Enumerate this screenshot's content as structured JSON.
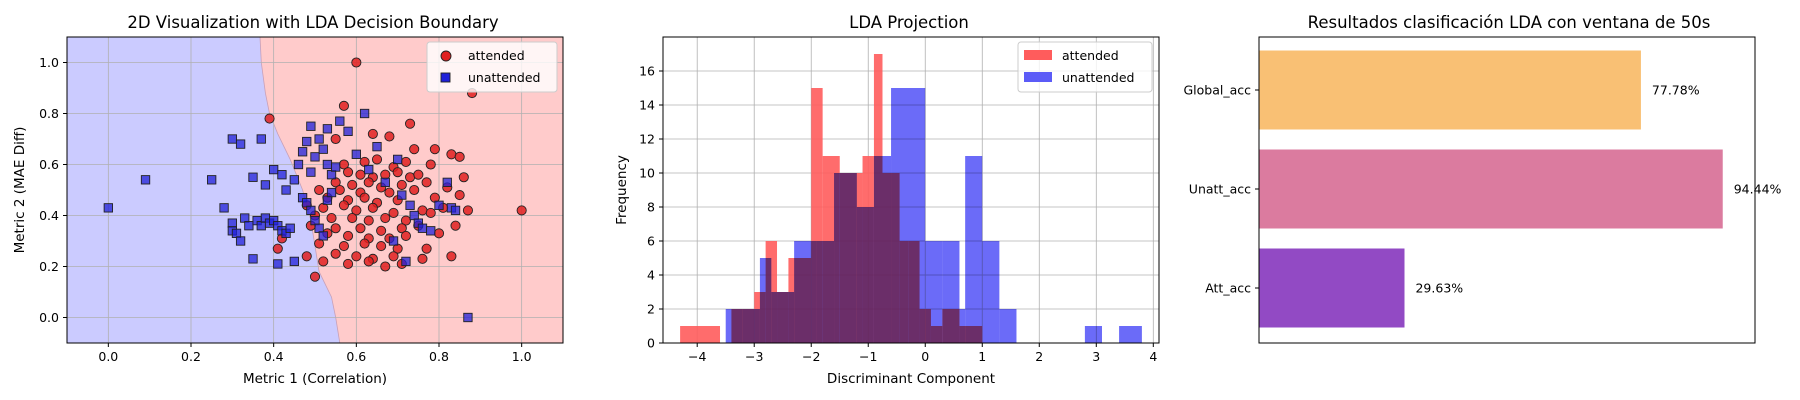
{
  "chart_data": [
    {
      "type": "scatter",
      "title": "2D Visualization with LDA Decision Boundary",
      "xlabel": "Metric 1 (Correlation)",
      "ylabel": "Metric 2 (MAE Diff)",
      "xlim": [
        -0.1,
        1.1
      ],
      "ylim": [
        -0.1,
        1.1
      ],
      "xticks": [
        "0.0",
        "0.2",
        "0.4",
        "0.6",
        "0.8",
        "1.0"
      ],
      "yticks": [
        "0.0",
        "0.2",
        "0.4",
        "0.6",
        "0.8",
        "1.0"
      ],
      "grid": true,
      "legend": "top-right",
      "regions": {
        "left_color": "#cbcbff",
        "right_color": "#ffcbcb"
      },
      "boundary": [
        [
          0.367,
          1.1
        ],
        [
          0.37,
          1.0
        ],
        [
          0.38,
          0.88
        ],
        [
          0.39,
          0.8
        ],
        [
          0.41,
          0.72
        ],
        [
          0.44,
          0.62
        ],
        [
          0.47,
          0.5
        ],
        [
          0.49,
          0.38
        ],
        [
          0.5,
          0.28
        ],
        [
          0.51,
          0.18
        ],
        [
          0.54,
          0.08
        ],
        [
          0.55,
          0.0
        ],
        [
          0.56,
          -0.1
        ]
      ],
      "series": [
        {
          "name": "attended",
          "marker": "circle",
          "color": "#e02020",
          "points": [
            [
              0.6,
              1.0
            ],
            [
              0.88,
              0.88
            ],
            [
              0.57,
              0.83
            ],
            [
              0.73,
              0.76
            ],
            [
              0.39,
              0.78
            ],
            [
              0.64,
              0.72
            ],
            [
              0.68,
              0.71
            ],
            [
              0.55,
              0.7
            ],
            [
              0.74,
              0.66
            ],
            [
              0.79,
              0.66
            ],
            [
              0.83,
              0.64
            ],
            [
              0.85,
              0.63
            ],
            [
              0.62,
              0.61
            ],
            [
              0.65,
              0.62
            ],
            [
              0.72,
              0.61
            ],
            [
              0.78,
              0.6
            ],
            [
              0.57,
              0.6
            ],
            [
              0.69,
              0.59
            ],
            [
              0.58,
              0.57
            ],
            [
              0.61,
              0.56
            ],
            [
              0.64,
              0.55
            ],
            [
              0.67,
              0.56
            ],
            [
              0.7,
              0.57
            ],
            [
              0.73,
              0.55
            ],
            [
              0.75,
              0.56
            ],
            [
              0.86,
              0.55
            ],
            [
              0.55,
              0.53
            ],
            [
              0.59,
              0.52
            ],
            [
              0.63,
              0.53
            ],
            [
              0.66,
              0.51
            ],
            [
              0.71,
              0.52
            ],
            [
              0.77,
              0.53
            ],
            [
              0.51,
              0.5
            ],
            [
              0.56,
              0.5
            ],
            [
              0.61,
              0.49
            ],
            [
              0.68,
              0.49
            ],
            [
              0.74,
              0.5
            ],
            [
              0.82,
              0.51
            ],
            [
              0.53,
              0.47
            ],
            [
              0.58,
              0.46
            ],
            [
              0.62,
              0.47
            ],
            [
              0.65,
              0.45
            ],
            [
              0.7,
              0.46
            ],
            [
              0.79,
              0.47
            ],
            [
              0.85,
              0.48
            ],
            [
              0.48,
              0.44
            ],
            [
              0.52,
              0.43
            ],
            [
              0.57,
              0.44
            ],
            [
              0.6,
              0.42
            ],
            [
              0.64,
              0.43
            ],
            [
              0.69,
              0.41
            ],
            [
              0.76,
              0.42
            ],
            [
              0.81,
              0.43
            ],
            [
              0.5,
              0.4
            ],
            [
              0.54,
              0.39
            ],
            [
              0.59,
              0.39
            ],
            [
              0.63,
              0.38
            ],
            [
              0.67,
              0.39
            ],
            [
              0.72,
              0.38
            ],
            [
              0.78,
              0.41
            ],
            [
              0.87,
              0.42
            ],
            [
              1.0,
              0.42
            ],
            [
              0.49,
              0.36
            ],
            [
              0.55,
              0.35
            ],
            [
              0.61,
              0.35
            ],
            [
              0.66,
              0.34
            ],
            [
              0.71,
              0.35
            ],
            [
              0.75,
              0.36
            ],
            [
              0.84,
              0.36
            ],
            [
              0.53,
              0.33
            ],
            [
              0.58,
              0.32
            ],
            [
              0.63,
              0.31
            ],
            [
              0.68,
              0.31
            ],
            [
              0.72,
              0.32
            ],
            [
              0.8,
              0.33
            ],
            [
              0.42,
              0.31
            ],
            [
              0.51,
              0.29
            ],
            [
              0.57,
              0.28
            ],
            [
              0.62,
              0.29
            ],
            [
              0.66,
              0.28
            ],
            [
              0.7,
              0.27
            ],
            [
              0.77,
              0.27
            ],
            [
              0.41,
              0.27
            ],
            [
              0.55,
              0.25
            ],
            [
              0.6,
              0.24
            ],
            [
              0.64,
              0.23
            ],
            [
              0.69,
              0.24
            ],
            [
              0.76,
              0.23
            ],
            [
              0.83,
              0.24
            ],
            [
              0.48,
              0.24
            ],
            [
              0.52,
              0.22
            ],
            [
              0.58,
              0.21
            ],
            [
              0.63,
              0.22
            ],
            [
              0.67,
              0.2
            ],
            [
              0.71,
              0.21
            ],
            [
              0.5,
              0.16
            ]
          ]
        },
        {
          "name": "unattended",
          "marker": "square",
          "color": "#2020d8",
          "points": [
            [
              0.0,
              0.43
            ],
            [
              0.09,
              0.54
            ],
            [
              0.28,
              0.43
            ],
            [
              0.25,
              0.54
            ],
            [
              0.3,
              0.7
            ],
            [
              0.32,
              0.68
            ],
            [
              0.37,
              0.7
            ],
            [
              0.33,
              0.39
            ],
            [
              0.34,
              0.36
            ],
            [
              0.3,
              0.37
            ],
            [
              0.3,
              0.34
            ],
            [
              0.31,
              0.33
            ],
            [
              0.32,
              0.3
            ],
            [
              0.36,
              0.38
            ],
            [
              0.37,
              0.36
            ],
            [
              0.38,
              0.39
            ],
            [
              0.39,
              0.37
            ],
            [
              0.4,
              0.38
            ],
            [
              0.41,
              0.36
            ],
            [
              0.42,
              0.34
            ],
            [
              0.43,
              0.33
            ],
            [
              0.44,
              0.35
            ],
            [
              0.35,
              0.55
            ],
            [
              0.38,
              0.52
            ],
            [
              0.4,
              0.58
            ],
            [
              0.42,
              0.56
            ],
            [
              0.43,
              0.5
            ],
            [
              0.45,
              0.54
            ],
            [
              0.46,
              0.6
            ],
            [
              0.47,
              0.65
            ],
            [
              0.48,
              0.69
            ],
            [
              0.49,
              0.57
            ],
            [
              0.5,
              0.63
            ],
            [
              0.51,
              0.7
            ],
            [
              0.52,
              0.66
            ],
            [
              0.53,
              0.6
            ],
            [
              0.54,
              0.56
            ],
            [
              0.55,
              0.59
            ],
            [
              0.47,
              0.47
            ],
            [
              0.48,
              0.45
            ],
            [
              0.49,
              0.42
            ],
            [
              0.5,
              0.38
            ],
            [
              0.51,
              0.35
            ],
            [
              0.52,
              0.32
            ],
            [
              0.53,
              0.46
            ],
            [
              0.54,
              0.49
            ],
            [
              0.35,
              0.23
            ],
            [
              0.41,
              0.21
            ],
            [
              0.45,
              0.22
            ],
            [
              0.49,
              0.75
            ],
            [
              0.53,
              0.74
            ],
            [
              0.56,
              0.77
            ],
            [
              0.58,
              0.73
            ],
            [
              0.62,
              0.8
            ],
            [
              0.65,
              0.67
            ],
            [
              0.6,
              0.64
            ],
            [
              0.63,
              0.58
            ],
            [
              0.67,
              0.53
            ],
            [
              0.7,
              0.62
            ],
            [
              0.71,
              0.48
            ],
            [
              0.73,
              0.44
            ],
            [
              0.74,
              0.4
            ],
            [
              0.75,
              0.37
            ],
            [
              0.76,
              0.35
            ],
            [
              0.78,
              0.34
            ],
            [
              0.8,
              0.44
            ],
            [
              0.82,
              0.53
            ],
            [
              0.83,
              0.43
            ],
            [
              0.84,
              0.42
            ],
            [
              0.69,
              0.3
            ],
            [
              0.72,
              0.22
            ],
            [
              0.87,
              0.0
            ]
          ]
        }
      ]
    },
    {
      "type": "bar",
      "subtype": "histogram",
      "title": "LDA Projection",
      "xlabel": "Discriminant Component",
      "ylabel": "Frequency",
      "xlim": [
        -4.6,
        4.1
      ],
      "ylim": [
        0,
        18
      ],
      "xticks": [
        "−4",
        "−3",
        "−2",
        "−1",
        "0",
        "1",
        "2",
        "3",
        "4"
      ],
      "yticks": [
        "0",
        "2",
        "4",
        "6",
        "8",
        "10",
        "12",
        "14",
        "16"
      ],
      "grid": true,
      "legend": "top-right",
      "series": [
        {
          "name": "attended",
          "color": "#ff5c5c",
          "bins": [
            [
              -4.3,
              -3.6,
              1
            ],
            [
              -3.6,
              -3.4,
              0
            ],
            [
              -3.4,
              -2.6,
              0
            ],
            [
              -3.4,
              -3.0,
              2
            ],
            [
              -3.0,
              -2.8,
              3
            ],
            [
              -2.8,
              -2.6,
              6
            ],
            [
              -2.6,
              -2.4,
              3
            ],
            [
              -2.4,
              -2.0,
              5
            ],
            [
              -2.0,
              -1.8,
              15
            ],
            [
              -1.8,
              -1.5,
              11
            ],
            [
              -1.5,
              -1.1,
              10
            ],
            [
              -1.1,
              -0.9,
              11
            ],
            [
              -0.9,
              -0.75,
              17
            ],
            [
              -0.75,
              -0.45,
              10
            ],
            [
              -0.45,
              -0.3,
              6
            ],
            [
              -0.3,
              -0.1,
              6
            ],
            [
              -0.1,
              0.1,
              2
            ],
            [
              0.1,
              0.3,
              1
            ],
            [
              0.3,
              0.6,
              2
            ],
            [
              0.6,
              1.0,
              1
            ]
          ]
        },
        {
          "name": "unattended",
          "color": "#5b5bf7",
          "bins": [
            [
              -3.5,
              -3.2,
              2
            ],
            [
              -3.2,
              -2.9,
              2
            ],
            [
              -2.9,
              -2.7,
              5
            ],
            [
              -2.7,
              -2.3,
              3
            ],
            [
              -2.3,
              -1.9,
              6
            ],
            [
              -1.9,
              -1.6,
              6
            ],
            [
              -1.6,
              -1.2,
              10
            ],
            [
              -1.2,
              -0.9,
              8
            ],
            [
              -0.9,
              -0.6,
              11
            ],
            [
              -0.6,
              0.0,
              15
            ],
            [
              0.0,
              0.3,
              6
            ],
            [
              0.3,
              0.6,
              6
            ],
            [
              0.6,
              0.7,
              2
            ],
            [
              0.7,
              1.0,
              11
            ],
            [
              1.0,
              1.3,
              6
            ],
            [
              1.3,
              1.6,
              2
            ],
            [
              1.6,
              2.0,
              0
            ],
            [
              2.8,
              3.1,
              1
            ],
            [
              3.4,
              3.8,
              1
            ]
          ]
        }
      ]
    },
    {
      "type": "bar",
      "orientation": "horizontal",
      "title": "Resultados clasificación LDA con ventana de 50s",
      "categories": [
        "Global_acc",
        "Unatt_acc",
        "Att_acc"
      ],
      "values": [
        77.78,
        94.44,
        29.63
      ],
      "labels": [
        "77.78%",
        "94.44%",
        "29.63%"
      ],
      "colors": [
        "#f9c074",
        "#db7b9f",
        "#924ac4"
      ],
      "xlim": [
        0,
        100
      ]
    }
  ]
}
